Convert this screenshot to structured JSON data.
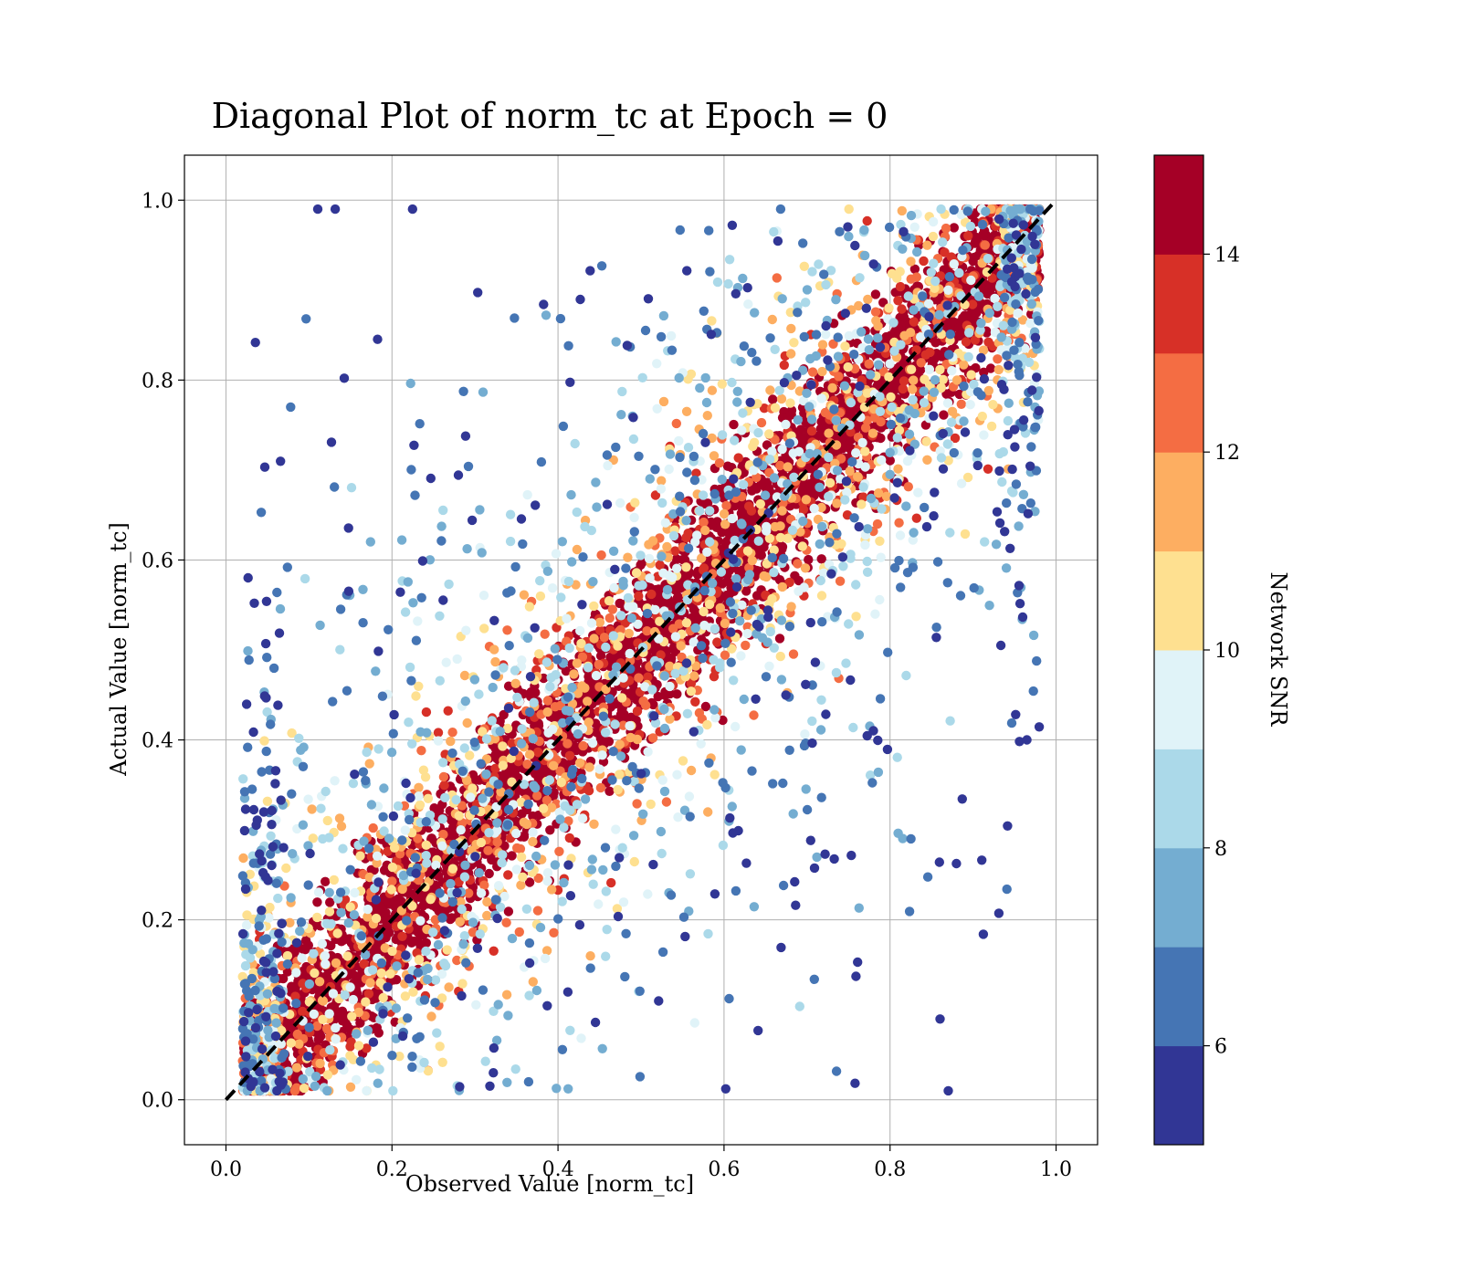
{
  "chart_data": {
    "type": "scatter",
    "title": "Diagonal Plot of norm_tc at Epoch = 0",
    "xlabel": "Observed Value [norm_tc]",
    "ylabel": "Actual Value [norm_tc]",
    "xlim": [
      -0.05,
      1.05
    ],
    "ylim": [
      -0.05,
      1.05
    ],
    "xticks": [
      "0.0",
      "0.2",
      "0.4",
      "0.6",
      "0.8",
      "1.0"
    ],
    "yticks": [
      "0.0",
      "0.2",
      "0.4",
      "0.6",
      "0.8",
      "1.0"
    ],
    "grid": true,
    "reference_line": {
      "style": "dashed",
      "color": "#000000",
      "x": [
        0,
        1
      ],
      "y": [
        0,
        1
      ]
    },
    "colorbar": {
      "label": "Network SNR",
      "range": [
        5,
        15
      ],
      "ticks": [
        "6",
        "8",
        "10",
        "12",
        "14"
      ],
      "colors": [
        "#313695",
        "#4575b4",
        "#74add1",
        "#abd9e9",
        "#e0f3f8",
        "#fee090",
        "#fdae61",
        "#f46d43",
        "#d73027",
        "#a50026"
      ]
    },
    "description_of_distribution": "points cluster along the diagonal with high SNR; low-SNR points spread widely away from the diagonal"
  }
}
